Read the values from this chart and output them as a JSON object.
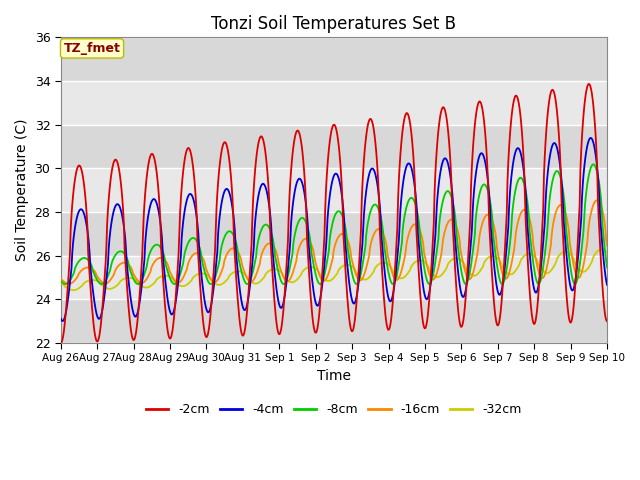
{
  "title": "Tonzi Soil Temperatures Set B",
  "xlabel": "Time",
  "ylabel": "Soil Temperature (C)",
  "ylim": [
    22,
    36
  ],
  "annotation_text": "TZ_fmet",
  "annotation_bg": "#ffffcc",
  "annotation_border": "#bbbb00",
  "annotation_text_color": "#880000",
  "background_color": "#ffffff",
  "grid_color_dark": "#d0d0d0",
  "grid_color_light": "#eeeeee",
  "series_colors": {
    "-2cm": "#dd0000",
    "-4cm": "#0000dd",
    "-8cm": "#00cc00",
    "-16cm": "#ff8800",
    "-32cm": "#cccc00"
  },
  "xtick_labels": [
    "Aug 26",
    "Aug 27",
    "Aug 28",
    "Aug 29",
    "Aug 30",
    "Aug 31",
    "Sep 1",
    "Sep 2",
    "Sep 3",
    "Sep 4",
    "Sep 5",
    "Sep 6",
    "Sep 7",
    "Sep 8",
    "Sep 9",
    "Sep 10"
  ],
  "legend_items": [
    "-2cm",
    "-4cm",
    "-8cm",
    "-16cm",
    "-32cm"
  ],
  "legend_colors": [
    "#dd0000",
    "#0000dd",
    "#00cc00",
    "#ff8800",
    "#cccc00"
  ]
}
